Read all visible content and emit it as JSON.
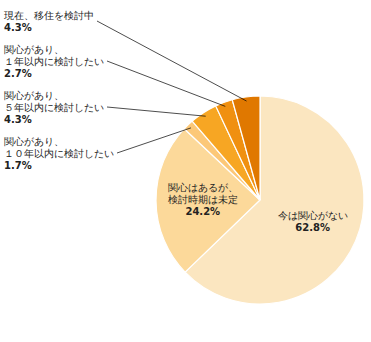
{
  "chart_data": {
    "type": "pie",
    "categories": [
      "今は関心がない",
      "関心はあるが、\n検討時期は未定",
      "関心があり、\n１０年以内に検討したい",
      "関心があり、\n５年以内に検討したい",
      "関心があり、\n１年以内に検討したい",
      "現在、移住を検討中"
    ],
    "values": [
      62.8,
      24.2,
      1.7,
      4.3,
      2.7,
      4.3
    ],
    "value_labels": [
      "62.8%",
      "24.2%",
      "1.7%",
      "4.3%",
      "2.7%",
      "4.3%"
    ],
    "colors": [
      "#fbe6c0",
      "#fcd99a",
      "#fcc878",
      "#f7a623",
      "#f09010",
      "#e07800"
    ],
    "data_labels": true
  }
}
